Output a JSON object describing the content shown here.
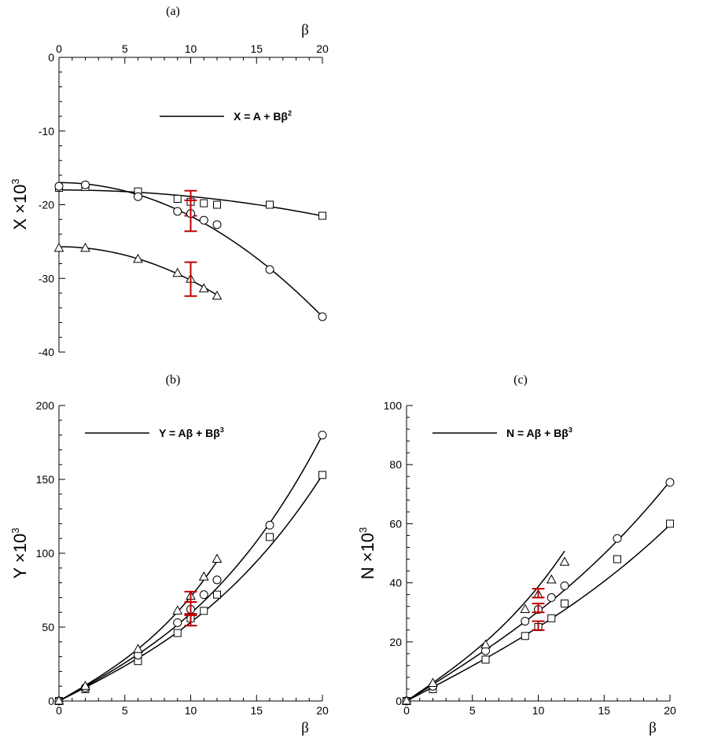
{
  "chart_data": [
    {
      "id": "a",
      "panel_label": "(a)",
      "type": "scatter",
      "xlabel": "β",
      "xaxis_position": "top",
      "ylabel": "X ×10",
      "ylabel_sup": "3",
      "xlim": [
        0,
        20
      ],
      "ylim": [
        -40,
        0
      ],
      "xticks": [
        0,
        5,
        10,
        15,
        20
      ],
      "yticks": [
        0,
        -10,
        -20,
        -30,
        -40
      ],
      "legend": {
        "line_label": "X = A + Bβ",
        "sup": "2",
        "placement": "top-right"
      },
      "series": [
        {
          "marker": "square",
          "x": [
            0,
            2,
            6,
            9,
            10,
            11,
            12,
            16,
            20
          ],
          "y": [
            -17.7,
            -17.6,
            -18.2,
            -19.2,
            -19.6,
            -19.8,
            -20.0,
            -20.0,
            -21.5
          ],
          "fit": {
            "A": -18.0,
            "B": -0.0088
          },
          "error_bar": {
            "x": 10,
            "y": -19.6,
            "low": -21.5,
            "high": -18.1
          }
        },
        {
          "marker": "circle",
          "x": [
            0,
            2,
            6,
            9,
            10,
            11,
            12,
            16,
            20
          ],
          "y": [
            -17.5,
            -17.3,
            -18.9,
            -20.9,
            -21.2,
            -22.1,
            -22.7,
            -28.8,
            -35.2
          ],
          "fit": {
            "A": -17.0,
            "B": -0.0455
          },
          "error_bar": {
            "x": 10,
            "y": -21.2,
            "low": -23.6,
            "high": -19.4
          }
        },
        {
          "marker": "triangle",
          "x": [
            0,
            2,
            6,
            9,
            10,
            11,
            12
          ],
          "y": [
            -25.9,
            -25.9,
            -27.4,
            -29.3,
            -30.1,
            -31.4,
            -32.4
          ],
          "fit": {
            "A": -25.7,
            "B": -0.0455
          },
          "error_bar": {
            "x": 10,
            "y": -30.1,
            "low": -32.4,
            "high": -27.8
          }
        }
      ]
    },
    {
      "id": "b",
      "panel_label": "(b)",
      "type": "scatter",
      "xlabel": "β",
      "xaxis_position": "bottom",
      "ylabel": "Y ×10",
      "ylabel_sup": "3",
      "xlim": [
        0,
        20
      ],
      "ylim": [
        0,
        200
      ],
      "xticks": [
        0,
        5,
        10,
        15,
        20
      ],
      "yticks": [
        0,
        50,
        100,
        150,
        200
      ],
      "legend": {
        "line_label": "Y = Aβ + Bβ",
        "sup": "3",
        "placement": "top-left"
      },
      "series": [
        {
          "marker": "square",
          "x": [
            0,
            2,
            6,
            9,
            10,
            11,
            12,
            16,
            20
          ],
          "y": [
            0,
            8,
            27,
            46,
            56,
            61,
            72,
            111,
            153
          ],
          "fit": {
            "A": 4.55,
            "B": 0.00775
          },
          "error_bar": {
            "x": 10,
            "y": 56,
            "low": 51,
            "high": 59
          }
        },
        {
          "marker": "circle",
          "x": [
            0,
            2,
            6,
            9,
            10,
            11,
            12,
            16,
            20
          ],
          "y": [
            0,
            9,
            31,
            53,
            62,
            72,
            82,
            119,
            180
          ],
          "fit": {
            "A": 4.9,
            "B": 0.01025
          },
          "error_bar": {
            "x": 10,
            "y": 62,
            "low": 58,
            "high": 67
          }
        },
        {
          "marker": "triangle",
          "x": [
            0,
            2,
            6,
            9,
            10,
            11,
            12
          ],
          "y": [
            0,
            10,
            35,
            61,
            71,
            84,
            96
          ],
          "fit": {
            "A": 5.2,
            "B": 0.0186
          },
          "error_bar": {
            "x": 10,
            "y": 71,
            "low": 67,
            "high": 74
          }
        }
      ]
    },
    {
      "id": "c",
      "panel_label": "(c)",
      "type": "scatter",
      "xlabel": "β",
      "xaxis_position": "bottom",
      "ylabel": "N ×10",
      "ylabel_sup": "3",
      "xlim": [
        0,
        20
      ],
      "ylim": [
        0,
        100
      ],
      "xticks": [
        0,
        5,
        10,
        15,
        20
      ],
      "yticks": [
        0,
        20,
        40,
        60,
        80,
        100
      ],
      "legend": {
        "line_label": "N = Aβ + Bβ",
        "sup": "3",
        "placement": "top-left"
      },
      "series": [
        {
          "marker": "square",
          "x": [
            0,
            2,
            6,
            9,
            10,
            11,
            12,
            16,
            20
          ],
          "y": [
            0,
            4,
            14,
            22,
            25,
            28,
            33,
            48,
            60
          ],
          "fit": {
            "A": 2.34,
            "B": 0.0016
          },
          "error_bar": {
            "x": 10,
            "y": 25,
            "low": 24,
            "high": 27
          }
        },
        {
          "marker": "circle",
          "x": [
            0,
            2,
            6,
            9,
            10,
            11,
            12,
            16,
            20
          ],
          "y": [
            0,
            5,
            17,
            27,
            31,
            35,
            39,
            55,
            74
          ],
          "fit": {
            "A": 2.8,
            "B": 0.0023
          },
          "error_bar": {
            "x": 10,
            "y": 31,
            "low": 30,
            "high": 33
          }
        },
        {
          "marker": "triangle",
          "x": [
            0,
            2,
            6,
            9,
            10,
            11,
            12
          ],
          "y": [
            0,
            6,
            19,
            31,
            36,
            41,
            47
          ],
          "fit": {
            "A": 3.05,
            "B": 0.0082
          },
          "error_bar": {
            "x": 10,
            "y": 36,
            "low": 35,
            "high": 38
          }
        }
      ]
    }
  ]
}
